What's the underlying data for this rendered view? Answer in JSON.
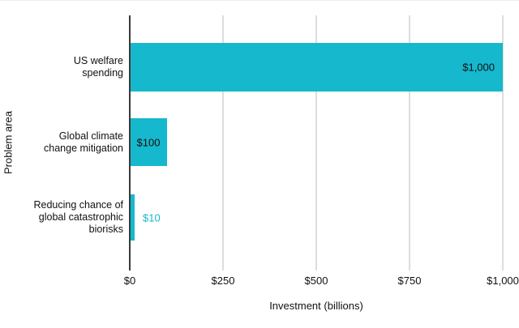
{
  "chart_data": {
    "type": "bar",
    "orientation": "horizontal",
    "xlabel": "Investment (billions)",
    "ylabel": "Problem area",
    "xlim": [
      0,
      1000
    ],
    "grid": true,
    "legend": "none",
    "bar_color": "#16b8cd",
    "x_ticks": [
      {
        "value": 0,
        "label": "$0"
      },
      {
        "value": 250,
        "label": "$250"
      },
      {
        "value": 500,
        "label": "$500"
      },
      {
        "value": 750,
        "label": "$750"
      },
      {
        "value": 1000,
        "label": "$1,000"
      }
    ],
    "categories": [
      "US welfare spending",
      "Global climate change mitigation",
      "Reducing chance of global catastrophic biorisks"
    ],
    "values": [
      1000,
      100,
      10
    ],
    "bars": [
      {
        "category_lines": [
          "US welfare",
          "spending"
        ],
        "value": 1000,
        "value_label": "$1,000",
        "label_placement": "inside-end",
        "label_color": "#111111"
      },
      {
        "category_lines": [
          "Global climate",
          "change mitigation"
        ],
        "value": 100,
        "value_label": "$100",
        "label_placement": "inside-center",
        "label_color": "#111111"
      },
      {
        "category_lines": [
          "Reducing chance of",
          "global catastrophic",
          "biorisks"
        ],
        "value": 10,
        "value_label": "$10",
        "label_placement": "outside-end",
        "label_color": "#16b8cd"
      }
    ]
  },
  "colors": {
    "bar": "#16b8cd",
    "axis_line": "#3a3a3a",
    "gridline": "#dddddd",
    "text": "#111111",
    "top_border": "#ececec"
  }
}
